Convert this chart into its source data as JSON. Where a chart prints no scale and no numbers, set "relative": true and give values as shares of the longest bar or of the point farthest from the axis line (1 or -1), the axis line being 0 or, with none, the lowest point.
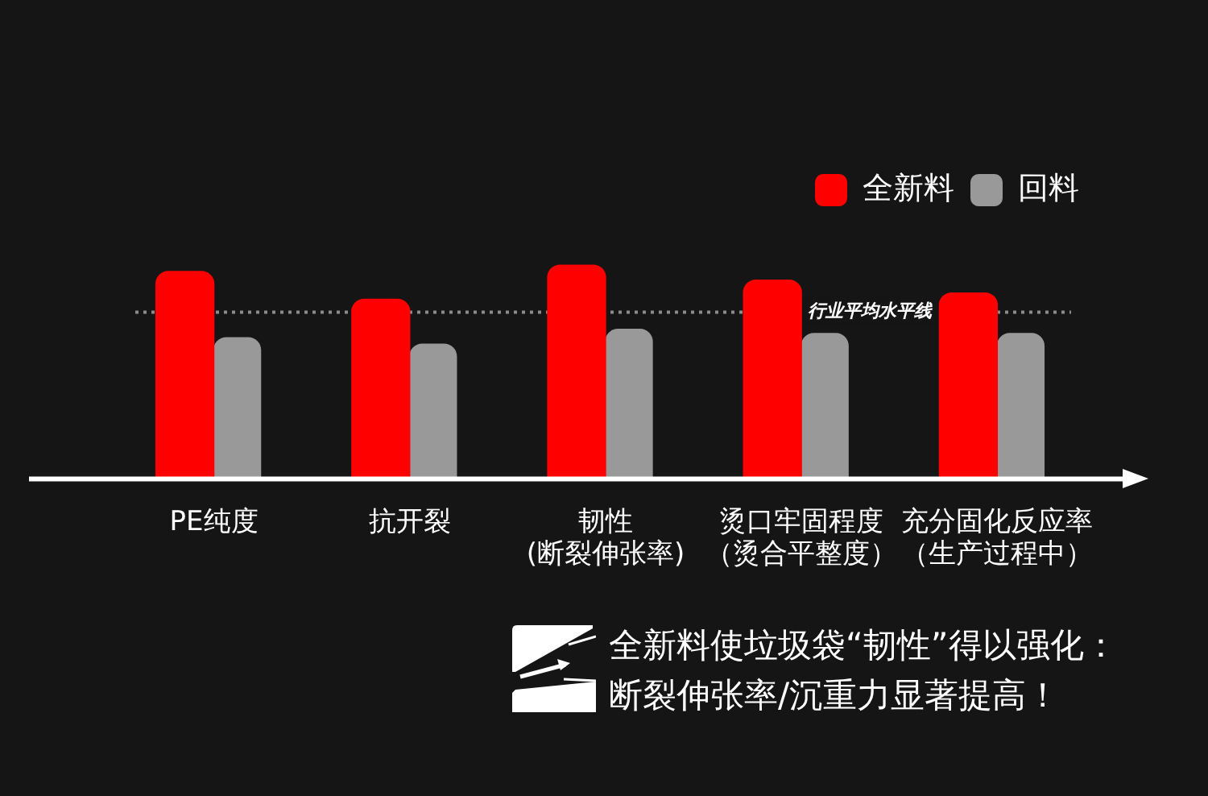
{
  "chart_data": {
    "type": "bar",
    "relative": true,
    "categories": [
      "PE纯度",
      "抗开裂",
      "韧性(断裂伸张率)",
      "烫口牢固程度（烫合平整度）",
      "充分固化反应率（生产过程中）"
    ],
    "series": [
      {
        "name": "全新料",
        "color": "#ff0000",
        "values": [
          0.97,
          0.84,
          1,
          0.93,
          0.87
        ]
      },
      {
        "name": "回料",
        "color": "#999999",
        "values": [
          0.66,
          0.63,
          0.7,
          0.68,
          0.68
        ]
      }
    ],
    "legend": "top right",
    "ref_lines": [
      {
        "axis": "y",
        "value": 0.78,
        "label": "行业平均水平线",
        "color": "#8c8c8c",
        "line_style": "dotted"
      }
    ],
    "annotations": [
      "全新料使垃圾袋“韧性”得以强化：",
      "断裂伸张率/沉重力显著提高！"
    ]
  }
}
